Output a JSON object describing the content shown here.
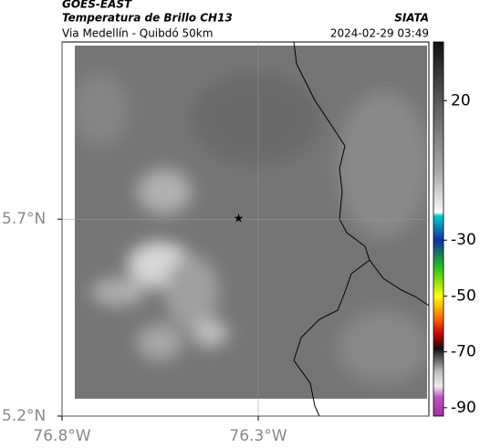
{
  "header": {
    "source": "GOES-EAST",
    "title": "Temperatura de Brillo CH13",
    "org": "SIATA",
    "subtitle": "Via Medellín - Quibdó 50km",
    "timestamp": "2024-02-29 03:49"
  },
  "map": {
    "lon_range": [
      -76.8,
      -75.865
    ],
    "lat_range": [
      5.2,
      6.15
    ],
    "lat_ticks": [
      {
        "value": 5.7,
        "label": "5.7°N"
      },
      {
        "value": 5.2,
        "label": "5.2°N"
      }
    ],
    "lon_ticks": [
      {
        "value": -76.8,
        "label": "76.8°W"
      },
      {
        "value": -76.3,
        "label": "76.3°W"
      }
    ],
    "marker": {
      "lon": -76.35,
      "lat": 5.7
    }
  },
  "colorbar": {
    "range": [
      -93,
      41
    ],
    "ticks": [
      20,
      -30,
      -50,
      -70,
      -90
    ]
  }
}
